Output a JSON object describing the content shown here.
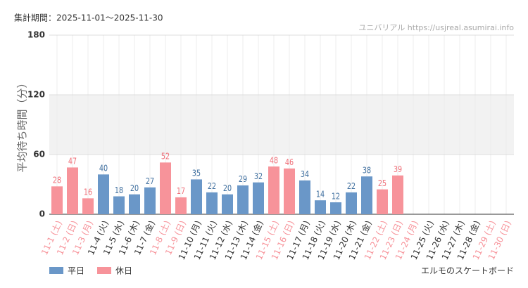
{
  "chart_data": {
    "type": "bar",
    "title": "集計期間：2025-11-01〜2025-11-30",
    "source": "ユニバリアル  https://usjreal.asumirai.info",
    "y_label": "平均待ち時間（分）",
    "subtitle": "エルモのスケートボード",
    "categories": [
      "11-1 (土)",
      "11-2 (日)",
      "11-3 (月)",
      "11-4 (火)",
      "11-5 (水)",
      "11-6 (木)",
      "11-7 (金)",
      "11-8 (土)",
      "11-9 (日)",
      "11-10 (月)",
      "11-11 (火)",
      "11-12 (水)",
      "11-13 (木)",
      "11-14 (金)",
      "11-15 (土)",
      "11-16 (日)",
      "11-17 (月)",
      "11-18 (火)",
      "11-19 (水)",
      "11-20 (木)",
      "11-21 (金)",
      "11-22 (土)",
      "11-23 (日)",
      "11-24 (月)",
      "11-25 (火)",
      "11-26 (水)",
      "11-27 (木)",
      "11-28 (金)",
      "11-29 (土)",
      "11-30 (日)"
    ],
    "category_label_colors": [
      "#f7939a",
      "#f7939a",
      "#f7939a",
      "#333333",
      "#333333",
      "#333333",
      "#333333",
      "#f7939a",
      "#f7939a",
      "#333333",
      "#333333",
      "#333333",
      "#333333",
      "#333333",
      "#f7939a",
      "#f7939a",
      "#333333",
      "#333333",
      "#333333",
      "#333333",
      "#333333",
      "#f7939a",
      "#f7939a",
      "#f7939a",
      "#333333",
      "#333333",
      "#333333",
      "#333333",
      "#f7939a",
      "#f7939a"
    ],
    "series": [
      {
        "name": "平日",
        "color": "#6a97c8",
        "label_color": "#3f6f9f",
        "values": [
          null,
          null,
          null,
          40,
          18,
          20,
          27,
          null,
          null,
          35,
          22,
          20,
          29,
          32,
          null,
          null,
          34,
          14,
          12,
          22,
          38,
          null,
          null,
          null,
          null,
          null,
          null,
          null,
          null,
          null
        ]
      },
      {
        "name": "休日",
        "color": "#f7939a",
        "label_color": "#ef6f78",
        "values": [
          28,
          47,
          16,
          null,
          null,
          null,
          null,
          52,
          17,
          null,
          null,
          null,
          null,
          null,
          48,
          46,
          null,
          null,
          null,
          null,
          null,
          25,
          39,
          null,
          null,
          null,
          null,
          null,
          null,
          null
        ]
      }
    ],
    "ylim": [
      0,
      180
    ],
    "yticks": [
      0,
      60,
      120,
      180
    ],
    "shaded_range": [
      60,
      120
    ],
    "grid": true
  }
}
